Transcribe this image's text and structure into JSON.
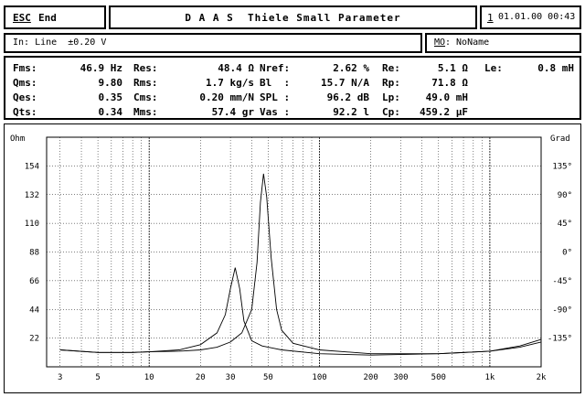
{
  "header": {
    "esc_key": "ESC",
    "esc_label": "End",
    "title": "D A A S  Thiele Small Parameter",
    "date_key": "1",
    "date": "01.01.00 00:43"
  },
  "input_row": {
    "input": "In: Line  ±0.20 V"
  },
  "model_row": {
    "mo_key": "MO",
    "mo_rest": ": NoName"
  },
  "params": {
    "rows": [
      [
        {
          "label": "Fms:",
          "value": "46.9 Hz"
        },
        {
          "label": "Res:",
          "value": "48.4 Ω"
        },
        {
          "label": "Nref:",
          "value": "2.62 %"
        },
        {
          "label": "Re:",
          "value": "5.1 Ω"
        },
        {
          "label": "Le:",
          "value": "0.8 mH"
        }
      ],
      [
        {
          "label": "Qms:",
          "value": "9.80"
        },
        {
          "label": "Rms:",
          "value": "1.7 kg/s"
        },
        {
          "label": "Bl  :",
          "value": "15.7 N/A"
        },
        {
          "label": "Rp:",
          "value": "71.8 Ω"
        }
      ],
      [
        {
          "label": "Qes:",
          "value": "0.35"
        },
        {
          "label": "Cms:",
          "value": "0.20 mm/N"
        },
        {
          "label": "SPL :",
          "value": "96.2 dB"
        },
        {
          "label": "Lp:",
          "value": "49.0 mH"
        }
      ],
      [
        {
          "label": "Qts:",
          "value": "0.34"
        },
        {
          "label": "Mms:",
          "value": "57.4 gr"
        },
        {
          "label": "Vas :",
          "value": "92.2 l"
        },
        {
          "label": "Cp:",
          "value": "459.2 μF"
        }
      ]
    ]
  },
  "chart_data": {
    "type": "line",
    "ylabel_left": "Ohm",
    "ylabel_right": "Grad",
    "x_scale": "log",
    "xlim": [
      2.5,
      2000
    ],
    "ylim_left": [
      0,
      176
    ],
    "ylim_right": [
      -180,
      180
    ],
    "x_ticks": [
      {
        "v": 3,
        "label": "3"
      },
      {
        "v": 5,
        "label": "5"
      },
      {
        "v": 10,
        "label": "10"
      },
      {
        "v": 20,
        "label": "20"
      },
      {
        "v": 30,
        "label": "30"
      },
      {
        "v": 50,
        "label": "50"
      },
      {
        "v": 100,
        "label": "100"
      },
      {
        "v": 200,
        "label": "200"
      },
      {
        "v": 300,
        "label": "300"
      },
      {
        "v": 500,
        "label": "500"
      },
      {
        "v": 1000,
        "label": "1k"
      },
      {
        "v": 2000,
        "label": "2k"
      }
    ],
    "y_ticks_left": [
      {
        "v": 22,
        "label": "22"
      },
      {
        "v": 44,
        "label": "44"
      },
      {
        "v": 66,
        "label": "66"
      },
      {
        "v": 88,
        "label": "88"
      },
      {
        "v": 110,
        "label": "110"
      },
      {
        "v": 132,
        "label": "132"
      },
      {
        "v": 154,
        "label": "154"
      }
    ],
    "y_ticks_right": [
      {
        "v": -135,
        "label": "-135°"
      },
      {
        "v": -90,
        "label": "-90°"
      },
      {
        "v": -45,
        "label": "-45°"
      },
      {
        "v": 0,
        "label": "0°"
      },
      {
        "v": 45,
        "label": "45°"
      },
      {
        "v": 90,
        "label": "90°"
      },
      {
        "v": 135,
        "label": "135°"
      }
    ],
    "grid": true,
    "series": [
      {
        "points": [
          [
            3,
            13
          ],
          [
            5,
            11
          ],
          [
            8,
            11
          ],
          [
            10,
            11.5
          ],
          [
            15,
            13
          ],
          [
            20,
            17
          ],
          [
            25,
            26
          ],
          [
            28,
            40
          ],
          [
            30,
            60
          ],
          [
            32,
            76
          ],
          [
            34,
            60
          ],
          [
            36,
            35
          ],
          [
            40,
            20
          ],
          [
            46,
            16
          ],
          [
            60,
            13
          ],
          [
            100,
            10
          ],
          [
            200,
            9
          ],
          [
            500,
            10
          ],
          [
            1000,
            12
          ],
          [
            1500,
            15
          ],
          [
            2000,
            19
          ]
        ]
      },
      {
        "points": [
          [
            3,
            13
          ],
          [
            5,
            11
          ],
          [
            8,
            11
          ],
          [
            10,
            11.5
          ],
          [
            15,
            12
          ],
          [
            20,
            13
          ],
          [
            25,
            15
          ],
          [
            30,
            19
          ],
          [
            35,
            26
          ],
          [
            40,
            44
          ],
          [
            43,
            80
          ],
          [
            45,
            126
          ],
          [
            46.9,
            148
          ],
          [
            49,
            130
          ],
          [
            52,
            84
          ],
          [
            56,
            44
          ],
          [
            60,
            28
          ],
          [
            70,
            18
          ],
          [
            100,
            13
          ],
          [
            200,
            10
          ],
          [
            500,
            10
          ],
          [
            1000,
            12
          ],
          [
            1500,
            16
          ],
          [
            2000,
            21
          ]
        ]
      }
    ]
  }
}
